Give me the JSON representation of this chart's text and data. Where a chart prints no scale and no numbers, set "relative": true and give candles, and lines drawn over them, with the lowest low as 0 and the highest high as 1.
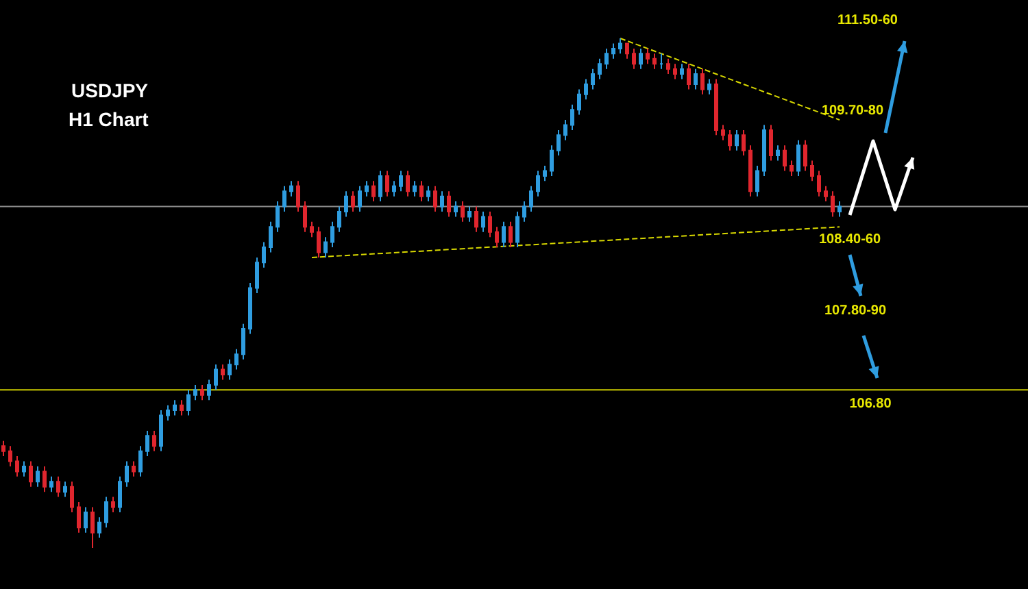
{
  "chart_data": {
    "type": "candlestick",
    "title": "USDJPY",
    "subtitle": "H1 Chart",
    "relative": true,
    "tick_labels": false,
    "grid": false,
    "categories": [
      null,
      null,
      null,
      null,
      null,
      null,
      null,
      null,
      null,
      null,
      null,
      null,
      null,
      null,
      null,
      null,
      null,
      null,
      null,
      null,
      null,
      null,
      null,
      null,
      null,
      null,
      null,
      null,
      null,
      null,
      null,
      null,
      null,
      null,
      null,
      null,
      null,
      null,
      null,
      null,
      null,
      null,
      null,
      null,
      null,
      null,
      null,
      null,
      null,
      null,
      null,
      null,
      null,
      null,
      null,
      null,
      null,
      null,
      null,
      null,
      null,
      null,
      null,
      null,
      null,
      null,
      null,
      null,
      null,
      null,
      null,
      null,
      null,
      null,
      null,
      null,
      null,
      null,
      null,
      null,
      null,
      null,
      null,
      null,
      null,
      null,
      null,
      null,
      null,
      null,
      null,
      null,
      null,
      null,
      null,
      null,
      null,
      null,
      null,
      null,
      null,
      null,
      null,
      null,
      null,
      null,
      null,
      null,
      null,
      null,
      null,
      null,
      null,
      null,
      null,
      null,
      null,
      null,
      null,
      null,
      null,
      null,
      null
    ],
    "ohlc": [
      [
        0.2,
        0.21,
        0.18,
        0.19
      ],
      [
        0.19,
        0.2,
        0.16,
        0.17
      ],
      [
        0.17,
        0.18,
        0.14,
        0.15
      ],
      [
        0.15,
        0.17,
        0.14,
        0.16
      ],
      [
        0.16,
        0.17,
        0.12,
        0.13
      ],
      [
        0.13,
        0.16,
        0.12,
        0.15
      ],
      [
        0.15,
        0.16,
        0.11,
        0.12
      ],
      [
        0.12,
        0.14,
        0.11,
        0.13
      ],
      [
        0.13,
        0.14,
        0.1,
        0.11
      ],
      [
        0.11,
        0.13,
        0.1,
        0.12
      ],
      [
        0.12,
        0.13,
        0.07,
        0.08
      ],
      [
        0.08,
        0.09,
        0.03,
        0.04
      ],
      [
        0.04,
        0.08,
        0.03,
        0.07
      ],
      [
        0.07,
        0.08,
        0,
        0.03
      ],
      [
        0.03,
        0.06,
        0.02,
        0.05
      ],
      [
        0.05,
        0.1,
        0.04,
        0.09
      ],
      [
        0.09,
        0.1,
        0.07,
        0.08
      ],
      [
        0.08,
        0.14,
        0.07,
        0.13
      ],
      [
        0.13,
        0.17,
        0.12,
        0.16
      ],
      [
        0.16,
        0.17,
        0.14,
        0.15
      ],
      [
        0.15,
        0.2,
        0.14,
        0.19
      ],
      [
        0.19,
        0.23,
        0.18,
        0.22
      ],
      [
        0.22,
        0.23,
        0.19,
        0.2
      ],
      [
        0.2,
        0.27,
        0.19,
        0.26
      ],
      [
        0.26,
        0.28,
        0.25,
        0.27
      ],
      [
        0.27,
        0.29,
        0.26,
        0.28
      ],
      [
        0.28,
        0.29,
        0.26,
        0.27
      ],
      [
        0.27,
        0.31,
        0.26,
        0.3
      ],
      [
        0.3,
        0.32,
        0.29,
        0.31
      ],
      [
        0.31,
        0.32,
        0.29,
        0.3
      ],
      [
        0.3,
        0.33,
        0.29,
        0.32
      ],
      [
        0.32,
        0.36,
        0.31,
        0.35
      ],
      [
        0.35,
        0.36,
        0.33,
        0.34
      ],
      [
        0.34,
        0.37,
        0.33,
        0.36
      ],
      [
        0.36,
        0.39,
        0.35,
        0.38
      ],
      [
        0.38,
        0.44,
        0.37,
        0.43
      ],
      [
        0.43,
        0.52,
        0.42,
        0.51
      ],
      [
        0.51,
        0.57,
        0.5,
        0.56
      ],
      [
        0.56,
        0.6,
        0.55,
        0.59
      ],
      [
        0.59,
        0.64,
        0.58,
        0.63
      ],
      [
        0.63,
        0.68,
        0.62,
        0.67
      ],
      [
        0.67,
        0.71,
        0.66,
        0.7
      ],
      [
        0.7,
        0.72,
        0.69,
        0.71
      ],
      [
        0.71,
        0.72,
        0.66,
        0.67
      ],
      [
        0.67,
        0.68,
        0.62,
        0.63
      ],
      [
        0.63,
        0.64,
        0.61,
        0.62
      ],
      [
        0.62,
        0.63,
        0.57,
        0.58
      ],
      [
        0.58,
        0.61,
        0.57,
        0.6
      ],
      [
        0.6,
        0.64,
        0.59,
        0.63
      ],
      [
        0.63,
        0.67,
        0.62,
        0.66
      ],
      [
        0.66,
        0.7,
        0.65,
        0.69
      ],
      [
        0.69,
        0.7,
        0.66,
        0.67
      ],
      [
        0.67,
        0.71,
        0.66,
        0.7
      ],
      [
        0.7,
        0.72,
        0.69,
        0.71
      ],
      [
        0.71,
        0.72,
        0.68,
        0.69
      ],
      [
        0.69,
        0.74,
        0.68,
        0.73
      ],
      [
        0.73,
        0.74,
        0.69,
        0.7
      ],
      [
        0.7,
        0.72,
        0.69,
        0.71
      ],
      [
        0.71,
        0.74,
        0.7,
        0.73
      ],
      [
        0.73,
        0.74,
        0.69,
        0.7
      ],
      [
        0.7,
        0.72,
        0.69,
        0.71
      ],
      [
        0.71,
        0.72,
        0.68,
        0.69
      ],
      [
        0.69,
        0.71,
        0.68,
        0.7
      ],
      [
        0.7,
        0.71,
        0.66,
        0.67
      ],
      [
        0.67,
        0.7,
        0.66,
        0.69
      ],
      [
        0.69,
        0.7,
        0.65,
        0.66
      ],
      [
        0.66,
        0.68,
        0.65,
        0.67
      ],
      [
        0.67,
        0.68,
        0.64,
        0.65
      ],
      [
        0.65,
        0.67,
        0.64,
        0.66
      ],
      [
        0.66,
        0.67,
        0.62,
        0.63
      ],
      [
        0.63,
        0.66,
        0.62,
        0.65
      ],
      [
        0.65,
        0.66,
        0.61,
        0.62
      ],
      [
        0.62,
        0.63,
        0.59,
        0.6
      ],
      [
        0.6,
        0.64,
        0.59,
        0.63
      ],
      [
        0.63,
        0.64,
        0.59,
        0.6
      ],
      [
        0.6,
        0.66,
        0.59,
        0.65
      ],
      [
        0.65,
        0.68,
        0.64,
        0.67
      ],
      [
        0.67,
        0.71,
        0.66,
        0.7
      ],
      [
        0.7,
        0.74,
        0.69,
        0.73
      ],
      [
        0.73,
        0.75,
        0.72,
        0.74
      ],
      [
        0.74,
        0.79,
        0.73,
        0.78
      ],
      [
        0.78,
        0.82,
        0.77,
        0.81
      ],
      [
        0.81,
        0.84,
        0.8,
        0.83
      ],
      [
        0.83,
        0.87,
        0.82,
        0.86
      ],
      [
        0.86,
        0.9,
        0.85,
        0.89
      ],
      [
        0.89,
        0.92,
        0.88,
        0.91
      ],
      [
        0.91,
        0.94,
        0.9,
        0.93
      ],
      [
        0.93,
        0.96,
        0.92,
        0.95
      ],
      [
        0.95,
        0.98,
        0.94,
        0.97
      ],
      [
        0.97,
        0.99,
        0.96,
        0.98
      ],
      [
        0.98,
        1,
        0.97,
        0.99
      ],
      [
        0.99,
        0.99,
        0.96,
        0.97
      ],
      [
        0.97,
        0.98,
        0.94,
        0.95
      ],
      [
        0.95,
        0.98,
        0.94,
        0.97
      ],
      [
        0.97,
        0.98,
        0.95,
        0.96
      ],
      [
        0.96,
        0.97,
        0.94,
        0.95
      ],
      [
        0.95,
        0.97,
        0.94,
        0.95
      ],
      [
        0.95,
        0.96,
        0.93,
        0.94
      ],
      [
        0.94,
        0.95,
        0.92,
        0.93
      ],
      [
        0.93,
        0.95,
        0.92,
        0.94
      ],
      [
        0.94,
        0.95,
        0.9,
        0.91
      ],
      [
        0.91,
        0.94,
        0.9,
        0.93
      ],
      [
        0.93,
        0.94,
        0.89,
        0.9
      ],
      [
        0.9,
        0.92,
        0.89,
        0.91
      ],
      [
        0.91,
        0.92,
        0.81,
        0.82
      ],
      [
        0.82,
        0.83,
        0.8,
        0.81
      ],
      [
        0.81,
        0.82,
        0.78,
        0.79
      ],
      [
        0.79,
        0.82,
        0.78,
        0.81
      ],
      [
        0.81,
        0.82,
        0.77,
        0.78
      ],
      [
        0.78,
        0.79,
        0.69,
        0.7
      ],
      [
        0.7,
        0.75,
        0.69,
        0.74
      ],
      [
        0.74,
        0.83,
        0.73,
        0.82
      ],
      [
        0.82,
        0.83,
        0.76,
        0.77
      ],
      [
        0.77,
        0.79,
        0.76,
        0.78
      ],
      [
        0.78,
        0.79,
        0.74,
        0.75
      ],
      [
        0.75,
        0.76,
        0.73,
        0.74
      ],
      [
        0.74,
        0.8,
        0.73,
        0.79
      ],
      [
        0.79,
        0.8,
        0.74,
        0.75
      ],
      [
        0.75,
        0.76,
        0.72,
        0.73
      ],
      [
        0.73,
        0.74,
        0.69,
        0.7
      ],
      [
        0.7,
        0.71,
        0.68,
        0.69
      ],
      [
        0.69,
        0.7,
        0.65,
        0.66
      ],
      [
        0.66,
        0.68,
        0.65,
        0.67
      ]
    ],
    "series": [
      {
        "type": "line",
        "color": "#d8d800",
        "line_style": "dashed",
        "values": [
          null,
          null,
          null,
          null,
          null,
          null,
          null,
          null,
          null,
          null,
          null,
          null,
          null,
          null,
          null,
          null,
          null,
          null,
          null,
          null,
          null,
          null,
          null,
          null,
          null,
          null,
          null,
          null,
          null,
          null,
          null,
          null,
          null,
          null,
          null,
          null,
          null,
          null,
          null,
          null,
          null,
          null,
          null,
          null,
          null,
          null,
          null,
          null,
          null,
          null,
          null,
          null,
          null,
          null,
          null,
          null,
          null,
          null,
          null,
          null,
          null,
          null,
          null,
          null,
          null,
          null,
          null,
          null,
          null,
          null,
          null,
          null,
          null,
          null,
          null,
          null,
          null,
          null,
          null,
          null,
          null,
          null,
          null,
          null,
          null,
          null,
          null,
          null,
          null,
          null,
          1,
          null,
          null,
          null,
          null,
          null,
          null,
          null,
          null,
          null,
          null,
          null,
          null,
          null,
          null,
          null,
          null,
          null,
          null,
          null,
          null,
          null,
          null,
          null,
          null,
          null,
          null,
          null,
          null,
          null,
          null,
          null,
          0.84
        ]
      },
      {
        "type": "line",
        "color": "#d8d800",
        "line_style": "dashed",
        "values": [
          null,
          null,
          null,
          null,
          null,
          null,
          null,
          null,
          null,
          null,
          null,
          null,
          null,
          null,
          null,
          null,
          null,
          null,
          null,
          null,
          null,
          null,
          null,
          null,
          null,
          null,
          null,
          null,
          null,
          null,
          null,
          null,
          null,
          null,
          null,
          null,
          null,
          null,
          null,
          null,
          null,
          null,
          null,
          null,
          null,
          0.57,
          null,
          null,
          null,
          null,
          null,
          null,
          null,
          null,
          null,
          null,
          null,
          null,
          null,
          null,
          null,
          null,
          null,
          null,
          null,
          null,
          null,
          null,
          null,
          null,
          null,
          null,
          null,
          null,
          null,
          null,
          null,
          null,
          null,
          null,
          null,
          null,
          null,
          null,
          null,
          null,
          null,
          null,
          null,
          null,
          null,
          null,
          null,
          null,
          null,
          null,
          null,
          null,
          null,
          null,
          null,
          null,
          null,
          null,
          null,
          null,
          null,
          null,
          null,
          null,
          null,
          null,
          null,
          null,
          null,
          null,
          null,
          null,
          null,
          null,
          null,
          null,
          0.63
        ]
      }
    ],
    "ref_lines": [
      {
        "axis": "y",
        "value": 0.67,
        "color": "#8a8a8a"
      },
      {
        "axis": "y",
        "value": 0.31,
        "color": "#c8c800"
      }
    ],
    "annotations": [
      "111.50-60",
      "109.70-80",
      "108.40-60",
      "107.80-90",
      "106.80"
    ]
  }
}
